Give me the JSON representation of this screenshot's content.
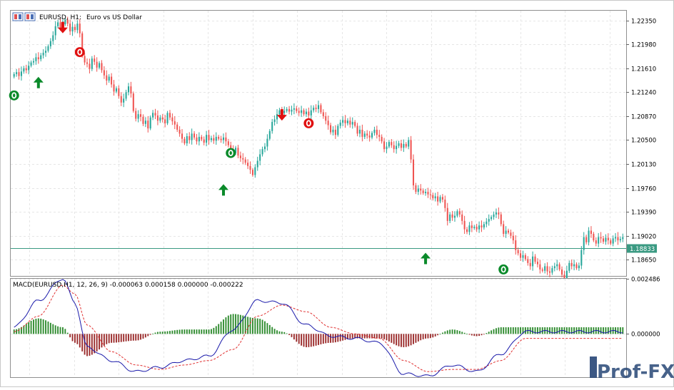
{
  "header": {
    "symbol_label": "EURUSD, H1:",
    "description": "Euro vs US Dollar"
  },
  "price_axis": {
    "ticks": [
      "1.22350",
      "1.21980",
      "1.21610",
      "1.21240",
      "1.20870",
      "1.20500",
      "1.20130",
      "1.19760",
      "1.19390",
      "1.19020",
      "1.18650"
    ],
    "current_price_label": "1.18833"
  },
  "macd_panel": {
    "label": "MACD(EURUSD,H1, 12, 26, 9) -0.000063 0.000158 0.000000 -0.000222",
    "ticks": [
      "0.002486",
      "0.000000"
    ]
  },
  "watermark": {
    "text": "Prof-FX"
  },
  "colors": {
    "bull_candle": "#26a69a",
    "bear_candle": "#ef5350",
    "buy_arrow": "#0a8a2a",
    "sell_arrow": "#e01010",
    "macd_line": "#1a1aaa",
    "signal_line": "#e03030",
    "hist_up": "#2e8b2e",
    "hist_down": "#9a2a2a",
    "price_line": "#3a9a82"
  },
  "chart_data": [
    {
      "type": "candlestick",
      "title": "",
      "ylim": [
        1.184,
        1.225
      ],
      "closes": [
        1.2152,
        1.2155,
        1.2149,
        1.2156,
        1.2161,
        1.2158,
        1.2165,
        1.217,
        1.2172,
        1.2178,
        1.2175,
        1.2181,
        1.2185,
        1.2188,
        1.2195,
        1.2203,
        1.2212,
        1.2226,
        1.2232,
        1.2224,
        1.2229,
        1.2236,
        1.223,
        1.2218,
        1.2225,
        1.222,
        1.223,
        1.2215,
        1.218,
        1.217,
        1.2168,
        1.216,
        1.2176,
        1.2171,
        1.2162,
        1.2169,
        1.2158,
        1.215,
        1.2142,
        1.2148,
        1.2136,
        1.2125,
        1.213,
        1.2118,
        1.2108,
        1.2114,
        1.2124,
        1.2133,
        1.2122,
        1.2095,
        1.2083,
        1.209,
        1.2086,
        1.2075,
        1.208,
        1.2068,
        1.2085,
        1.2092,
        1.2088,
        1.208,
        1.2085,
        1.2082,
        1.2076,
        1.2092,
        1.2085,
        1.2079,
        1.2074,
        1.2066,
        1.206,
        1.2052,
        1.2045,
        1.2056,
        1.205,
        1.206,
        1.2054,
        1.2048,
        1.2055,
        1.2051,
        1.2046,
        1.2058,
        1.205,
        1.2053,
        1.2049,
        1.2055,
        1.2052,
        1.205,
        1.2054,
        1.2048,
        1.2042,
        1.2035,
        1.203,
        1.2038,
        1.2026,
        1.2022,
        1.202,
        1.2015,
        1.201,
        1.2004,
        1.1996,
        1.2008,
        1.2018,
        1.2028,
        1.2036,
        1.204,
        1.2052,
        1.2064,
        1.2078,
        1.2082,
        1.209,
        1.2096,
        1.2092,
        1.2095,
        1.2098,
        1.2094,
        1.2097,
        1.2099,
        1.2095,
        1.2092,
        1.2096,
        1.209,
        1.2094,
        1.2088,
        1.2096,
        1.21,
        1.2098,
        1.2104,
        1.2093,
        1.2087,
        1.208,
        1.2073,
        1.2062,
        1.2066,
        1.2058,
        1.2072,
        1.2077,
        1.2081,
        1.2076,
        1.208,
        1.2074,
        1.2078,
        1.2072,
        1.206,
        1.2066,
        1.2055,
        1.206,
        1.2057,
        1.2054,
        1.2061,
        1.2066,
        1.2058,
        1.2055,
        1.2048,
        1.2036,
        1.204,
        1.2047,
        1.2042,
        1.2036,
        1.2041,
        1.2045,
        1.2038,
        1.2044,
        1.204,
        1.205,
        1.202,
        1.198,
        1.197,
        1.1975,
        1.1972,
        1.1968,
        1.197,
        1.1966,
        1.1965,
        1.196,
        1.1963,
        1.1955,
        1.1962,
        1.1958,
        1.1945,
        1.1925,
        1.1935,
        1.193,
        1.1933,
        1.194,
        1.1935,
        1.1925,
        1.1912,
        1.1908,
        1.1918,
        1.1914,
        1.1916,
        1.1912,
        1.1918,
        1.1915,
        1.192,
        1.1924,
        1.1928,
        1.1931,
        1.1935,
        1.1938,
        1.1935,
        1.192,
        1.1905,
        1.191,
        1.1907,
        1.1902,
        1.1895,
        1.188,
        1.1875,
        1.1868,
        1.1872,
        1.1866,
        1.186,
        1.1855,
        1.187,
        1.1862,
        1.1858,
        1.185,
        1.1848,
        1.1855,
        1.1847,
        1.1845,
        1.1852,
        1.1855,
        1.1858,
        1.185,
        1.1842,
        1.1835,
        1.1848,
        1.186,
        1.1855,
        1.1858,
        1.1852,
        1.1856,
        1.188,
        1.19,
        1.1892,
        1.191,
        1.1905,
        1.1895,
        1.189,
        1.19,
        1.1898,
        1.1893,
        1.1899,
        1.1895,
        1.189,
        1.1898,
        1.19,
        1.1895,
        1.1897,
        1.19
      ],
      "current_price": 1.18833,
      "buy_signals": [
        {
          "bar": 10,
          "price": 1.2139
        },
        {
          "bar": 86,
          "price": 1.1973
        },
        {
          "bar": 169,
          "price": 1.1867
        }
      ],
      "sell_signals": [
        {
          "bar": 20,
          "price": 1.2224
        },
        {
          "bar": 110,
          "price": 1.2089
        }
      ],
      "buy_exits": [
        {
          "bar": 0,
          "price": 1.2119
        },
        {
          "bar": 89,
          "price": 1.203
        },
        {
          "bar": 201,
          "price": 1.185
        }
      ],
      "sell_exits": [
        {
          "bar": 27,
          "price": 1.2186
        },
        {
          "bar": 121,
          "price": 1.2076
        }
      ]
    },
    {
      "type": "line",
      "title": "MACD(EURUSD,H1, 12, 26, 9) -0.000063 0.000158 0.000000 -0.000222",
      "ylim": [
        -0.00195,
        0.002486
      ],
      "x": [
        0,
        10,
        20,
        25,
        30,
        40,
        50,
        60,
        70,
        80,
        90,
        100,
        110,
        120,
        130,
        140,
        150,
        160,
        170,
        180,
        190,
        200,
        210
      ],
      "series": [
        {
          "values": [
            0.0003,
            0.0015,
            0.0025,
            0.0014,
            -0.0006,
            -0.0012,
            -0.0017,
            -0.0015,
            -0.0012,
            -0.001,
            0.0002,
            0.0015,
            0.0014,
            0.0004,
            -0.0001,
            -0.0002,
            -0.0004,
            -0.0018,
            -0.0019,
            -0.0014,
            -0.0017,
            -0.0009,
            0.0001
          ]
        },
        {
          "values": [
            0.0001,
            0.0008,
            0.0022,
            0.0018,
            0.0004,
            -0.0008,
            -0.0014,
            -0.0016,
            -0.0014,
            -0.0012,
            -0.0007,
            0.0008,
            0.0013,
            0.001,
            0.0003,
            0.0,
            -0.0002,
            -0.0012,
            -0.0017,
            -0.0016,
            -0.0016,
            -0.0012,
            -0.0002
          ]
        },
        {
          "values": [
            0.0002,
            0.0007,
            0.0003,
            -0.0004,
            -0.001,
            -0.0004,
            -0.0003,
            0.0001,
            0.0002,
            0.0002,
            0.0009,
            0.0007,
            0.0001,
            -0.0006,
            -0.0004,
            -0.0002,
            -0.0002,
            -0.0006,
            -0.0002,
            0.0002,
            -0.0001,
            0.0003,
            0.0003
          ]
        }
      ]
    }
  ]
}
